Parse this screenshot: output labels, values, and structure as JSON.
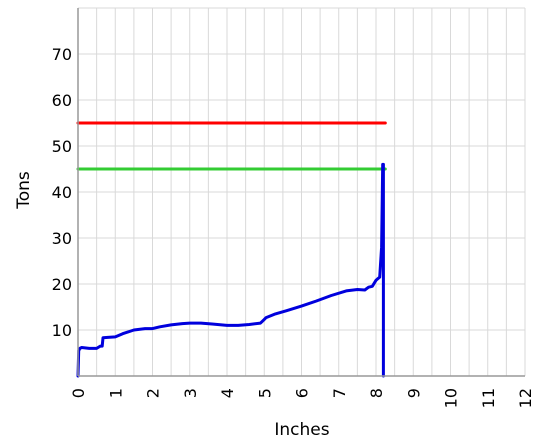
{
  "chart_data": {
    "type": "line",
    "xlabel": "Inches",
    "ylabel": "Tons",
    "xlim": [
      0,
      12
    ],
    "ylim": [
      0,
      80
    ],
    "x_ticks": [
      0,
      1,
      2,
      3,
      4,
      5,
      6,
      7,
      8,
      9,
      10,
      11,
      12
    ],
    "y_ticks": [
      10,
      20,
      30,
      40,
      50,
      60,
      70
    ],
    "grid": true,
    "colors": {
      "red_line": "#ff0000",
      "green_line": "#33cc33",
      "load_curve": "#0000dd",
      "grid": "#d9d9d9"
    },
    "series": [
      {
        "color": "#ff0000",
        "x": [
          0,
          8.25
        ],
        "y": [
          55,
          55
        ]
      },
      {
        "color": "#33cc33",
        "x": [
          0,
          8.25
        ],
        "y": [
          45,
          45
        ]
      },
      {
        "color": "#0000dd",
        "x": [
          0,
          0.02,
          0.05,
          0.1,
          0.3,
          0.5,
          0.6,
          0.65,
          0.67,
          0.8,
          1.0,
          1.2,
          1.5,
          1.8,
          2.0,
          2.2,
          2.5,
          2.8,
          3.0,
          3.3,
          3.6,
          4.0,
          4.3,
          4.6,
          4.9,
          5.0,
          5.05,
          5.3,
          5.6,
          6.0,
          6.4,
          6.8,
          7.2,
          7.5,
          7.7,
          7.8,
          7.9,
          8.0,
          8.1,
          8.15,
          8.18,
          8.2,
          8.2
        ],
        "y": [
          0,
          5.5,
          6,
          6.2,
          6,
          6,
          6.5,
          6.5,
          8.3,
          8.4,
          8.5,
          9.2,
          10,
          10.3,
          10.3,
          10.7,
          11.1,
          11.4,
          11.5,
          11.5,
          11.3,
          11,
          11,
          11.2,
          11.5,
          12.3,
          12.7,
          13.5,
          14.2,
          15.2,
          16.3,
          17.5,
          18.5,
          18.8,
          18.7,
          19.3,
          19.5,
          20.8,
          21.5,
          28,
          46,
          46,
          0
        ]
      }
    ]
  }
}
